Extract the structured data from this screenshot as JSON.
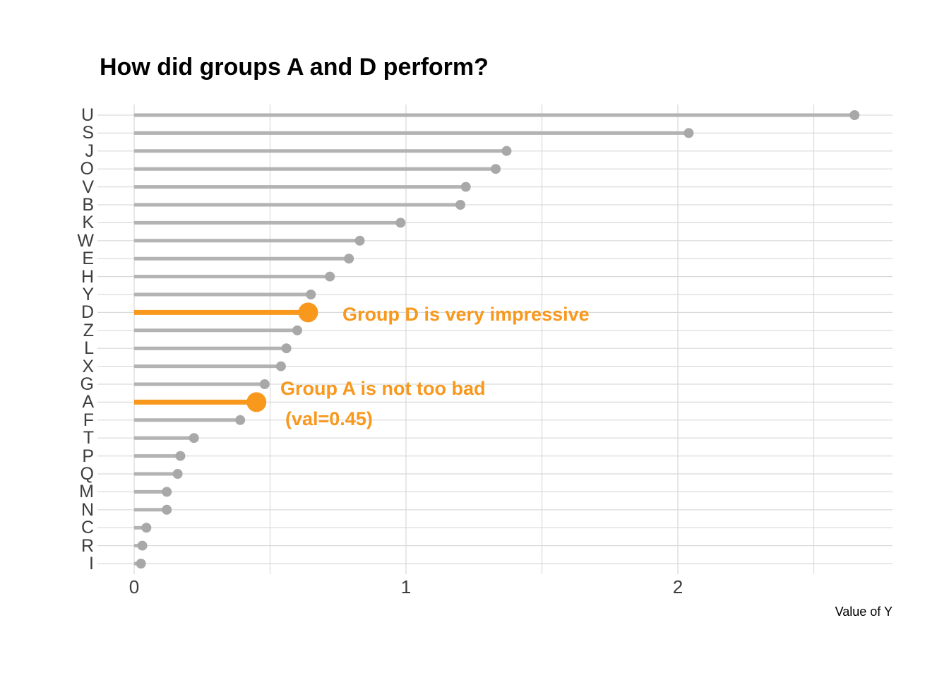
{
  "title": "How did groups A and D perform?",
  "chart_data": {
    "type": "lollipop",
    "orientation": "horizontal",
    "categories": [
      "U",
      "S",
      "J",
      "O",
      "V",
      "B",
      "K",
      "W",
      "E",
      "H",
      "Y",
      "D",
      "Z",
      "L",
      "X",
      "G",
      "A",
      "F",
      "T",
      "P",
      "Q",
      "M",
      "N",
      "C",
      "R",
      "I"
    ],
    "values": [
      2.65,
      2.04,
      1.37,
      1.33,
      1.22,
      1.2,
      0.98,
      0.83,
      0.79,
      0.72,
      0.65,
      0.64,
      0.6,
      0.56,
      0.54,
      0.48,
      0.45,
      0.39,
      0.22,
      0.17,
      0.16,
      0.12,
      0.12,
      0.045,
      0.03,
      0.025
    ],
    "highlighted": [
      "D",
      "A"
    ],
    "annotations": [
      {
        "target": "D",
        "text": "Group D is very impressive"
      },
      {
        "target": "A",
        "text": "Group A is not too bad",
        "text2": "(val=0.45)"
      }
    ],
    "title": "How did groups A and D perform?",
    "xlabel": "Value of Y",
    "ylabel": "",
    "x_ticks": [
      0,
      1,
      2
    ],
    "x_gridlines": [
      0,
      0.5,
      1,
      1.5,
      2,
      2.5
    ],
    "xlim": [
      -0.13,
      2.79
    ],
    "grid": "on",
    "legend": "none",
    "colors": {
      "highlight": "#f8981d",
      "stem": "#b3b3b3",
      "dot": "#a8a8a8",
      "gridline": "#d9d9d9",
      "axis_text": "#3d3d3d",
      "title_text": "#000000"
    }
  }
}
